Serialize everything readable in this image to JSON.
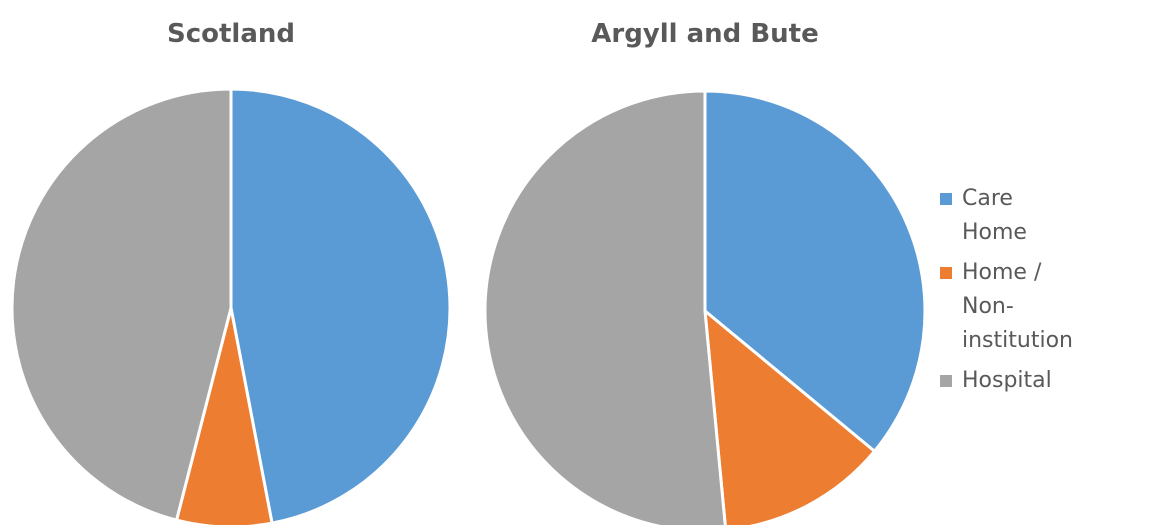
{
  "chart_data": [
    {
      "type": "pie",
      "title": "Scotland",
      "categories": [
        "Care Home",
        "Home / Non-institution",
        "Hospital"
      ],
      "values": [
        47,
        7,
        46
      ],
      "colors": [
        "#5b9bd5",
        "#ed7d31",
        "#a5a5a5"
      ]
    },
    {
      "type": "pie",
      "title": "Argyll and Bute",
      "categories": [
        "Care Home",
        "Home / Non-institution",
        "Hospital"
      ],
      "values": [
        36,
        12.5,
        51.5
      ],
      "colors": [
        "#5b9bd5",
        "#ed7d31",
        "#a5a5a5"
      ],
      "legend": "right"
    }
  ]
}
